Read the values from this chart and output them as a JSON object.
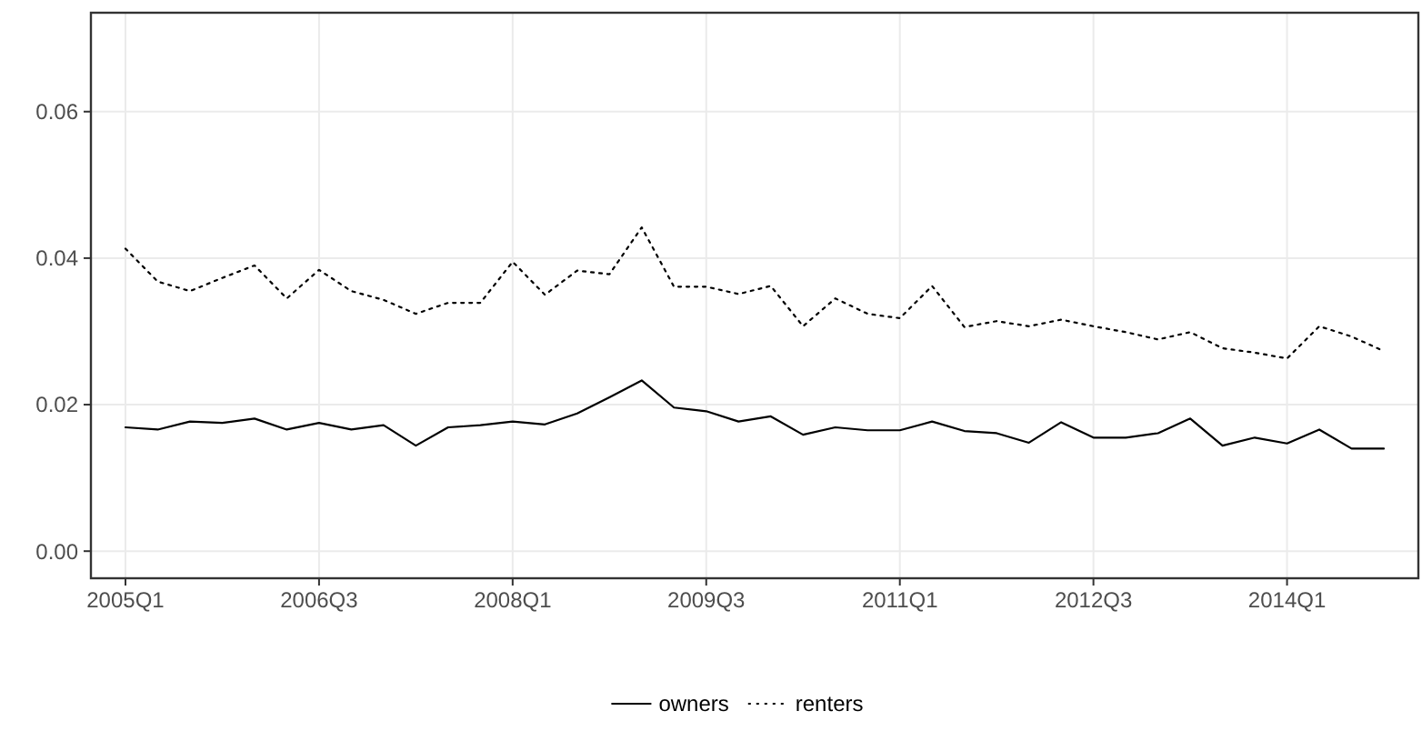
{
  "chart_data": {
    "type": "line",
    "categories": [
      "2005Q1",
      null,
      null,
      null,
      null,
      null,
      "2006Q3",
      null,
      null,
      null,
      null,
      null,
      "2008Q1",
      null,
      null,
      null,
      null,
      null,
      "2009Q3",
      null,
      null,
      null,
      null,
      null,
      "2011Q1",
      null,
      null,
      null,
      null,
      null,
      "2012Q3",
      null,
      null,
      null,
      null,
      null,
      "2014Q1",
      null,
      null,
      null
    ],
    "series": [
      {
        "name": "owners",
        "color": "#000000",
        "line_style": "solid",
        "values": [
          0.0169,
          0.0166,
          0.0177,
          0.0175,
          0.0181,
          0.0166,
          0.0175,
          0.0166,
          0.0172,
          0.0144,
          0.0169,
          0.0172,
          0.0177,
          0.0173,
          0.0188,
          0.021,
          0.0233,
          0.0196,
          0.0191,
          0.0177,
          0.0184,
          0.0159,
          0.0169,
          0.0165,
          0.0165,
          0.0177,
          0.0164,
          0.0161,
          0.0148,
          0.0176,
          0.0155,
          0.0155,
          0.0161,
          0.0181,
          0.0144,
          0.0155,
          0.0147,
          0.0166,
          0.014,
          0.014
        ]
      },
      {
        "name": "renters",
        "color": "#000000",
        "line_style": "dotted",
        "values": [
          0.0413,
          0.0368,
          0.0355,
          0.0373,
          0.039,
          0.0345,
          0.0384,
          0.0355,
          0.0343,
          0.0324,
          0.0339,
          0.0339,
          0.0395,
          0.035,
          0.0383,
          0.0378,
          0.0442,
          0.0361,
          0.0361,
          0.0351,
          0.0362,
          0.0307,
          0.0345,
          0.0324,
          0.0318,
          0.0362,
          0.0306,
          0.0314,
          0.0307,
          0.0316,
          0.0307,
          0.0299,
          0.0289,
          0.0299,
          0.0277,
          0.0271,
          0.0263,
          0.0307,
          0.0293,
          0.0273
        ]
      }
    ],
    "ylim": [
      -0.0037,
      0.0735
    ],
    "yticks": [
      {
        "value": 0,
        "label": "0.00"
      },
      {
        "value": 0.02,
        "label": "0.02"
      },
      {
        "value": 0.04,
        "label": "0.04"
      },
      {
        "value": 0.06,
        "label": "0.06"
      }
    ],
    "grid": true,
    "legend": "bottom"
  }
}
